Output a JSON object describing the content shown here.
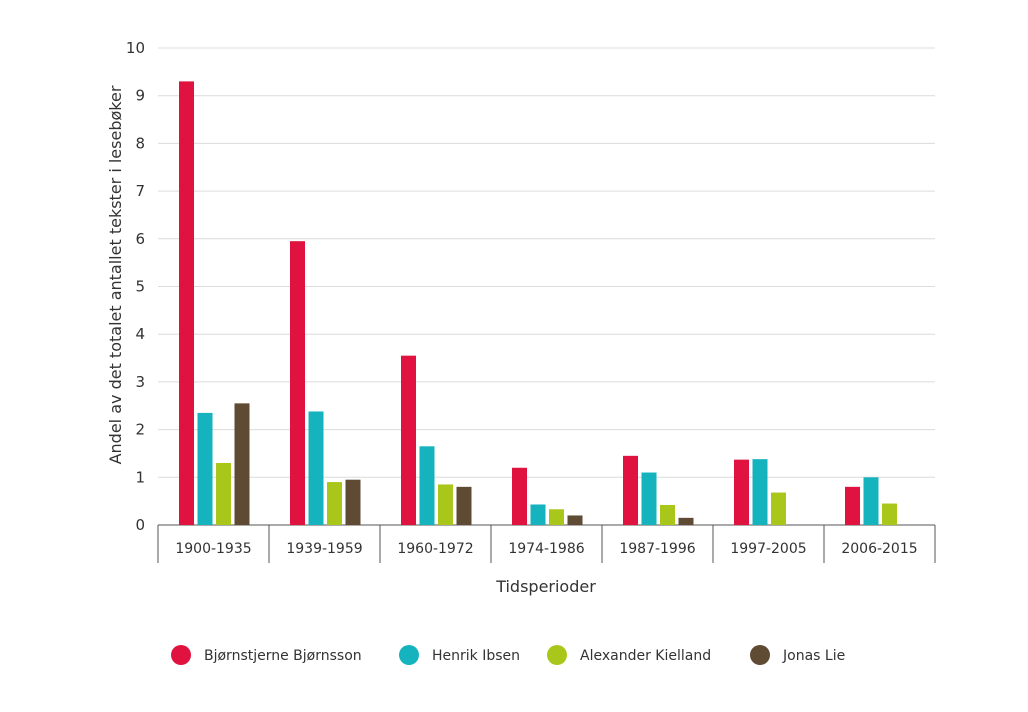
{
  "chart_data": {
    "type": "bar",
    "title": "",
    "xlabel": "Tidsperioder",
    "ylabel": "Andel av det totalet antallet tekster i lesebøker",
    "ylim": [
      0,
      10
    ],
    "yticks": [
      "0",
      "1",
      "2",
      "3",
      "4",
      "5",
      "6",
      "7",
      "8",
      "9",
      "10"
    ],
    "grid": true,
    "legend_position": "bottom",
    "categories": [
      "1900-1935",
      "1939-1959",
      "1960-1972",
      "1974-1986",
      "1987-1996",
      "1997-2005",
      "2006-2015"
    ],
    "series": [
      {
        "name": "Bjørnstjerne Bjørnsson",
        "color": "#e0123f",
        "values": [
          9.3,
          5.95,
          3.55,
          1.2,
          1.45,
          1.37,
          0.8
        ]
      },
      {
        "name": "Henrik Ibsen",
        "color": "#15b3bd",
        "values": [
          2.35,
          2.38,
          1.65,
          0.43,
          1.1,
          1.38,
          1.0
        ]
      },
      {
        "name": "Alexander Kielland",
        "color": "#a9c71a",
        "values": [
          1.3,
          0.9,
          0.85,
          0.33,
          0.42,
          0.68,
          0.45
        ]
      },
      {
        "name": "Jonas Lie",
        "color": "#5f4a33",
        "values": [
          2.55,
          0.95,
          0.8,
          0.2,
          0.15,
          0,
          0
        ]
      }
    ]
  }
}
